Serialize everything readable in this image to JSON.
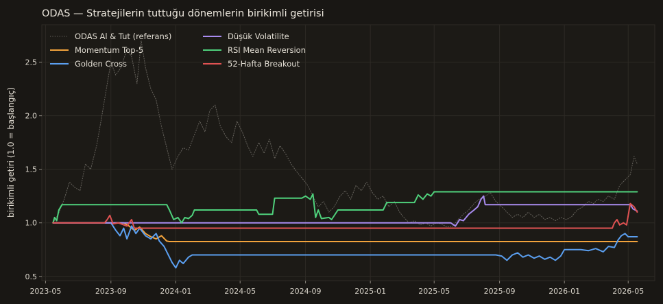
{
  "chart_data": {
    "type": "line",
    "title": "ODAS — Stratejilerin tuttuğu dönemlerin birikimli getirisi",
    "xlabel": "",
    "ylabel": "birikimli getiri (1.0 = başlangıç)",
    "xlim": [
      "2023-04-24",
      "2026-06-20"
    ],
    "ylim": [
      0.46,
      2.85
    ],
    "grid": true,
    "legend_position": "top-left",
    "x_ticks": [
      "2023-05",
      "2023-09",
      "2024-01",
      "2024-05",
      "2024-09",
      "2025-01",
      "2025-05",
      "2025-09",
      "2026-01",
      "2026-05"
    ],
    "y_ticks": [
      "0.5",
      "1.0",
      "1.5",
      "2.0",
      "2.5"
    ],
    "series": [
      {
        "name": "ODAS Al & Tut (referans)",
        "color": "#6e6a64",
        "style": "dotted",
        "points": [
          [
            "2023-05-15",
            1.0
          ],
          [
            "2023-05-25",
            1.08
          ],
          [
            "2023-06-05",
            1.22
          ],
          [
            "2023-06-15",
            1.38
          ],
          [
            "2023-06-25",
            1.33
          ],
          [
            "2023-07-05",
            1.3
          ],
          [
            "2023-07-15",
            1.55
          ],
          [
            "2023-07-25",
            1.5
          ],
          [
            "2023-08-05",
            1.72
          ],
          [
            "2023-08-15",
            2.0
          ],
          [
            "2023-08-25",
            2.3
          ],
          [
            "2023-09-01",
            2.5
          ],
          [
            "2023-09-10",
            2.38
          ],
          [
            "2023-09-20",
            2.45
          ],
          [
            "2023-10-01",
            2.62
          ],
          [
            "2023-10-10",
            2.55
          ],
          [
            "2023-10-20",
            2.3
          ],
          [
            "2023-10-28",
            2.7
          ],
          [
            "2023-11-05",
            2.45
          ],
          [
            "2023-11-15",
            2.25
          ],
          [
            "2023-11-25",
            2.15
          ],
          [
            "2023-12-05",
            1.9
          ],
          [
            "2023-12-15",
            1.7
          ],
          [
            "2023-12-25",
            1.5
          ],
          [
            "2024-01-05",
            1.62
          ],
          [
            "2024-01-15",
            1.7
          ],
          [
            "2024-01-25",
            1.68
          ],
          [
            "2024-02-05",
            1.82
          ],
          [
            "2024-02-15",
            1.95
          ],
          [
            "2024-02-25",
            1.85
          ],
          [
            "2024-03-05",
            2.05
          ],
          [
            "2024-03-15",
            2.1
          ],
          [
            "2024-03-25",
            1.9
          ],
          [
            "2024-04-05",
            1.8
          ],
          [
            "2024-04-15",
            1.75
          ],
          [
            "2024-04-25",
            1.95
          ],
          [
            "2024-05-05",
            1.85
          ],
          [
            "2024-05-15",
            1.72
          ],
          [
            "2024-05-25",
            1.62
          ],
          [
            "2024-06-05",
            1.75
          ],
          [
            "2024-06-15",
            1.65
          ],
          [
            "2024-06-25",
            1.78
          ],
          [
            "2024-07-05",
            1.6
          ],
          [
            "2024-07-15",
            1.72
          ],
          [
            "2024-07-25",
            1.65
          ],
          [
            "2024-08-05",
            1.55
          ],
          [
            "2024-08-15",
            1.48
          ],
          [
            "2024-08-25",
            1.42
          ],
          [
            "2024-09-05",
            1.35
          ],
          [
            "2024-09-15",
            1.25
          ],
          [
            "2024-09-25",
            1.15
          ],
          [
            "2024-10-05",
            1.2
          ],
          [
            "2024-10-15",
            1.1
          ],
          [
            "2024-10-25",
            1.15
          ],
          [
            "2024-11-05",
            1.25
          ],
          [
            "2024-11-15",
            1.3
          ],
          [
            "2024-11-25",
            1.22
          ],
          [
            "2024-12-05",
            1.35
          ],
          [
            "2024-12-15",
            1.3
          ],
          [
            "2024-12-25",
            1.38
          ],
          [
            "2025-01-05",
            1.28
          ],
          [
            "2025-01-15",
            1.22
          ],
          [
            "2025-01-25",
            1.25
          ],
          [
            "2025-02-05",
            1.15
          ],
          [
            "2025-02-15",
            1.2
          ],
          [
            "2025-02-25",
            1.1
          ],
          [
            "2025-03-05",
            1.05
          ],
          [
            "2025-03-15",
            1.0
          ],
          [
            "2025-03-25",
            1.02
          ],
          [
            "2025-04-05",
            0.98
          ],
          [
            "2025-04-15",
            1.0
          ],
          [
            "2025-04-25",
            0.97
          ],
          [
            "2025-05-05",
            1.0
          ],
          [
            "2025-05-15",
            0.99
          ],
          [
            "2025-05-25",
            0.96
          ],
          [
            "2025-06-05",
            0.97
          ],
          [
            "2025-06-15",
            1.03
          ],
          [
            "2025-06-25",
            1.08
          ],
          [
            "2025-07-05",
            1.12
          ],
          [
            "2025-07-15",
            1.18
          ],
          [
            "2025-07-25",
            1.22
          ],
          [
            "2025-08-05",
            1.25
          ],
          [
            "2025-08-15",
            1.28
          ],
          [
            "2025-08-25",
            1.2
          ],
          [
            "2025-09-05",
            1.15
          ],
          [
            "2025-09-15",
            1.1
          ],
          [
            "2025-09-25",
            1.05
          ],
          [
            "2025-10-05",
            1.08
          ],
          [
            "2025-10-15",
            1.05
          ],
          [
            "2025-10-25",
            1.1
          ],
          [
            "2025-11-05",
            1.05
          ],
          [
            "2025-11-15",
            1.08
          ],
          [
            "2025-11-25",
            1.03
          ],
          [
            "2025-12-05",
            1.05
          ],
          [
            "2025-12-15",
            1.02
          ],
          [
            "2025-12-25",
            1.05
          ],
          [
            "2026-01-05",
            1.03
          ],
          [
            "2026-01-15",
            1.06
          ],
          [
            "2026-01-25",
            1.12
          ],
          [
            "2026-02-05",
            1.15
          ],
          [
            "2026-02-15",
            1.2
          ],
          [
            "2026-02-25",
            1.18
          ],
          [
            "2026-03-05",
            1.22
          ],
          [
            "2026-03-15",
            1.2
          ],
          [
            "2026-03-25",
            1.25
          ],
          [
            "2026-04-05",
            1.22
          ],
          [
            "2026-04-15",
            1.35
          ],
          [
            "2026-04-25",
            1.4
          ],
          [
            "2026-05-05",
            1.45
          ],
          [
            "2026-05-12",
            1.62
          ],
          [
            "2026-05-18",
            1.55
          ]
        ]
      },
      {
        "name": "Momentum Top-5",
        "color": "#f2a33c",
        "style": "solid",
        "points": [
          [
            "2023-05-15",
            1.0
          ],
          [
            "2023-09-25",
            1.0
          ],
          [
            "2023-10-05",
            0.97
          ],
          [
            "2023-10-15",
            0.93
          ],
          [
            "2023-10-25",
            0.96
          ],
          [
            "2023-11-05",
            0.9
          ],
          [
            "2023-11-15",
            0.87
          ],
          [
            "2023-11-25",
            0.85
          ],
          [
            "2023-12-05",
            0.88
          ],
          [
            "2023-12-15",
            0.83
          ],
          [
            "2023-12-20",
            0.825
          ],
          [
            "2026-05-18",
            0.825
          ]
        ]
      },
      {
        "name": "Golden Cross",
        "color": "#5b9ff0",
        "style": "solid",
        "points": [
          [
            "2023-05-15",
            1.0
          ],
          [
            "2023-09-01",
            1.0
          ],
          [
            "2023-09-10",
            0.93
          ],
          [
            "2023-09-18",
            0.88
          ],
          [
            "2023-09-25",
            0.95
          ],
          [
            "2023-10-01",
            0.85
          ],
          [
            "2023-10-10",
            0.97
          ],
          [
            "2023-10-18",
            0.9
          ],
          [
            "2023-10-25",
            0.95
          ],
          [
            "2023-11-05",
            0.88
          ],
          [
            "2023-11-15",
            0.85
          ],
          [
            "2023-11-25",
            0.9
          ],
          [
            "2023-12-01",
            0.83
          ],
          [
            "2023-12-10",
            0.78
          ],
          [
            "2023-12-18",
            0.7
          ],
          [
            "2023-12-25",
            0.63
          ],
          [
            "2024-01-01",
            0.58
          ],
          [
            "2024-01-08",
            0.65
          ],
          [
            "2024-01-15",
            0.62
          ],
          [
            "2024-01-25",
            0.68
          ],
          [
            "2024-02-01",
            0.7
          ],
          [
            "2025-08-25",
            0.7
          ],
          [
            "2025-09-05",
            0.69
          ],
          [
            "2025-09-15",
            0.65
          ],
          [
            "2025-09-25",
            0.7
          ],
          [
            "2025-10-05",
            0.72
          ],
          [
            "2025-10-15",
            0.68
          ],
          [
            "2025-10-25",
            0.7
          ],
          [
            "2025-11-05",
            0.67
          ],
          [
            "2025-11-15",
            0.69
          ],
          [
            "2025-11-25",
            0.66
          ],
          [
            "2025-12-05",
            0.68
          ],
          [
            "2025-12-15",
            0.65
          ],
          [
            "2025-12-25",
            0.69
          ],
          [
            "2026-01-01",
            0.75
          ],
          [
            "2026-01-10",
            0.75
          ],
          [
            "2026-02-01",
            0.75
          ],
          [
            "2026-02-15",
            0.74
          ],
          [
            "2026-03-01",
            0.76
          ],
          [
            "2026-03-15",
            0.73
          ],
          [
            "2026-03-25",
            0.78
          ],
          [
            "2026-04-05",
            0.77
          ],
          [
            "2026-04-12",
            0.84
          ],
          [
            "2026-04-18",
            0.88
          ],
          [
            "2026-04-25",
            0.9
          ],
          [
            "2026-05-01",
            0.87
          ],
          [
            "2026-05-18",
            0.87
          ]
        ]
      },
      {
        "name": "Düşük Volatilite",
        "color": "#a98cf0",
        "style": "solid",
        "points": [
          [
            "2023-05-15",
            1.0
          ],
          [
            "2025-06-01",
            1.0
          ],
          [
            "2025-06-10",
            0.97
          ],
          [
            "2025-06-18",
            1.03
          ],
          [
            "2025-06-25",
            1.02
          ],
          [
            "2025-07-05",
            1.08
          ],
          [
            "2025-07-15",
            1.12
          ],
          [
            "2025-07-22",
            1.15
          ],
          [
            "2025-07-28",
            1.22
          ],
          [
            "2025-08-02",
            1.25
          ],
          [
            "2025-08-05",
            1.17
          ],
          [
            "2026-05-05",
            1.17
          ],
          [
            "2026-05-10",
            1.13
          ],
          [
            "2026-05-18",
            1.11
          ]
        ]
      },
      {
        "name": "RSI Mean Reversion",
        "color": "#4fd17c",
        "style": "solid",
        "points": [
          [
            "2023-05-15",
            1.0
          ],
          [
            "2023-05-18",
            1.05
          ],
          [
            "2023-05-22",
            1.02
          ],
          [
            "2023-05-26",
            1.12
          ],
          [
            "2023-06-01",
            1.17
          ],
          [
            "2023-12-15",
            1.17
          ],
          [
            "2023-12-20",
            1.12
          ],
          [
            "2023-12-28",
            1.03
          ],
          [
            "2024-01-05",
            1.05
          ],
          [
            "2024-01-12",
            1.0
          ],
          [
            "2024-01-18",
            1.05
          ],
          [
            "2024-01-25",
            1.04
          ],
          [
            "2024-02-01",
            1.07
          ],
          [
            "2024-02-05",
            1.12
          ],
          [
            "2024-06-01",
            1.12
          ],
          [
            "2024-06-05",
            1.08
          ],
          [
            "2024-07-01",
            1.08
          ],
          [
            "2024-07-05",
            1.23
          ],
          [
            "2024-08-25",
            1.23
          ],
          [
            "2024-09-01",
            1.25
          ],
          [
            "2024-09-10",
            1.22
          ],
          [
            "2024-09-15",
            1.27
          ],
          [
            "2024-09-20",
            1.05
          ],
          [
            "2024-09-25",
            1.12
          ],
          [
            "2024-10-01",
            1.04
          ],
          [
            "2024-10-15",
            1.05
          ],
          [
            "2024-10-20",
            1.03
          ],
          [
            "2024-11-01",
            1.12
          ],
          [
            "2025-01-25",
            1.12
          ],
          [
            "2025-02-01",
            1.19
          ],
          [
            "2025-03-25",
            1.19
          ],
          [
            "2025-04-01",
            1.26
          ],
          [
            "2025-04-10",
            1.22
          ],
          [
            "2025-04-18",
            1.27
          ],
          [
            "2025-04-25",
            1.25
          ],
          [
            "2025-05-01",
            1.29
          ],
          [
            "2026-05-18",
            1.29
          ]
        ]
      },
      {
        "name": "52-Hafta Breakout",
        "color": "#e05252",
        "style": "solid",
        "points": [
          [
            "2023-05-15",
            1.0
          ],
          [
            "2023-08-20",
            1.0
          ],
          [
            "2023-08-25",
            1.03
          ],
          [
            "2023-08-30",
            1.07
          ],
          [
            "2023-09-05",
            0.99
          ],
          [
            "2023-09-15",
            1.0
          ],
          [
            "2023-10-01",
            0.97
          ],
          [
            "2023-10-10",
            1.03
          ],
          [
            "2023-10-15",
            0.95
          ],
          [
            "2026-04-01",
            0.95
          ],
          [
            "2026-04-05",
            1.0
          ],
          [
            "2026-04-10",
            1.03
          ],
          [
            "2026-04-15",
            0.98
          ],
          [
            "2026-04-22",
            1.0
          ],
          [
            "2026-04-28",
            0.98
          ],
          [
            "2026-05-05",
            1.18
          ],
          [
            "2026-05-12",
            1.15
          ],
          [
            "2026-05-18",
            1.1
          ]
        ]
      }
    ]
  }
}
